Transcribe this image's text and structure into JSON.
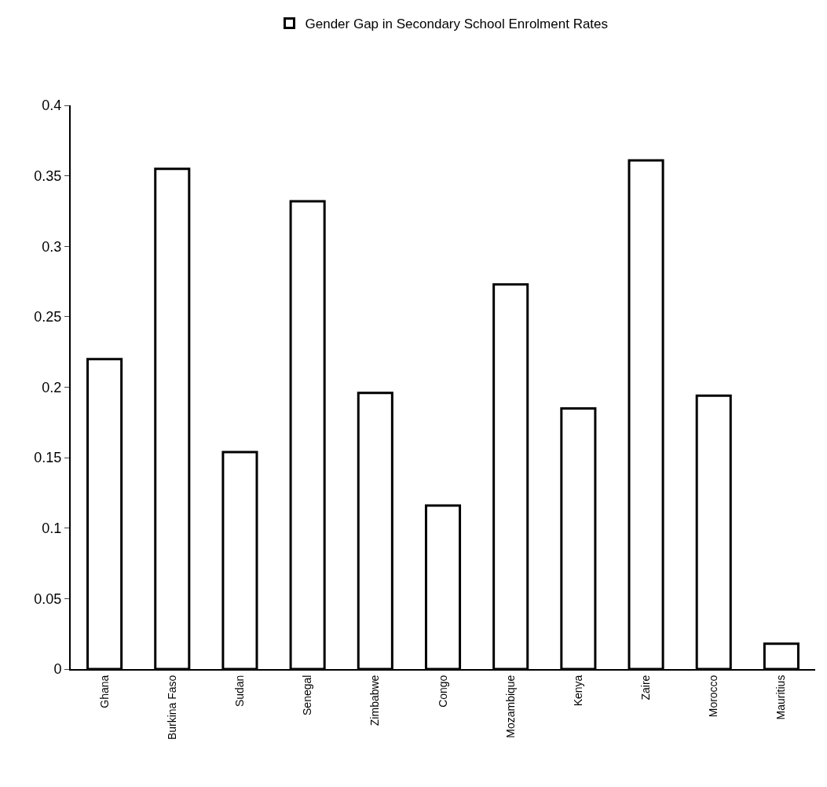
{
  "chart_data": {
    "type": "bar",
    "categories": [
      "Ghana",
      "Burkina Faso",
      "Sudan",
      "Senegal",
      "Zimbabwe",
      "Congo",
      "Mozambique",
      "Kenya",
      "Zaire",
      "Morocco",
      "Mauritius"
    ],
    "series": [
      {
        "name": "Gender Gap in Secondary School Enrolment Rates",
        "color": "#ffffff",
        "values": [
          0.22,
          0.355,
          0.154,
          0.332,
          0.196,
          0.116,
          0.273,
          0.185,
          0.361,
          0.194,
          0.018
        ]
      }
    ],
    "ylim": [
      0,
      0.4
    ],
    "yticks": [
      0,
      0.05,
      0.1,
      0.15,
      0.2,
      0.25,
      0.3,
      0.35,
      0.4
    ],
    "grid": false,
    "legend": "top"
  }
}
